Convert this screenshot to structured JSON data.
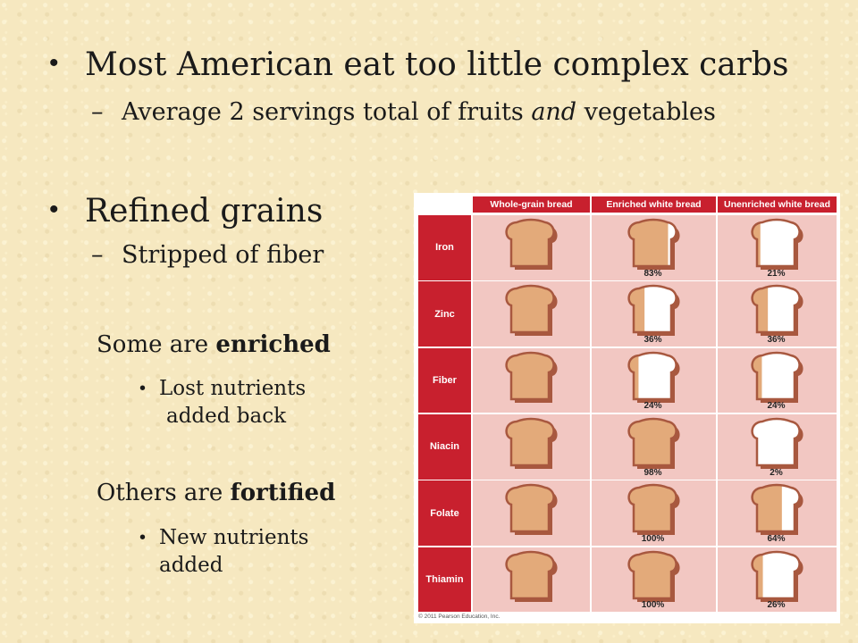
{
  "slide": {
    "bullet1": "Most American eat too little complex carbs",
    "bullet1_sub_prefix": "Average 2 servings total of fruits ",
    "bullet1_sub_italic": "and",
    "bullet1_sub_suffix": " vegetables",
    "dash": "–",
    "bullet2": "Refined grains",
    "bullet2_sub": "Stripped of fiber",
    "enriched_prefix": "Some are ",
    "enriched_bold": "enriched",
    "enriched_sub_line1": "Lost nutrients",
    "enriched_sub_line2": "added back",
    "fortified_prefix": "Others are ",
    "fortified_bold": "fortified",
    "fortified_sub_line1": "New nutrients",
    "fortified_sub_line2": "added"
  },
  "colors": {
    "header_red": "#c8202e",
    "cell_pink": "#f2c7c2",
    "bread_crust": "#a8583f",
    "bread_fill": "#e3aa7a",
    "bread_white": "#ffffff"
  },
  "chart_data": {
    "type": "table",
    "columns": [
      "Whole-grain bread",
      "Enriched white bread",
      "Unenriched white bread"
    ],
    "rows": [
      {
        "nutrient": "Iron",
        "enriched": "83%",
        "unenriched": "21%",
        "enriched_value": 83,
        "unenriched_value": 21
      },
      {
        "nutrient": "Zinc",
        "enriched": "36%",
        "unenriched": "36%",
        "enriched_value": 36,
        "unenriched_value": 36
      },
      {
        "nutrient": "Fiber",
        "enriched": "24%",
        "unenriched": "24%",
        "enriched_value": 24,
        "unenriched_value": 24
      },
      {
        "nutrient": "Niacin",
        "enriched": "98%",
        "unenriched": "2%",
        "enriched_value": 98,
        "unenriched_value": 2
      },
      {
        "nutrient": "Folate",
        "enriched": "100%",
        "unenriched": "64%",
        "enriched_value": 100,
        "unenriched_value": 64
      },
      {
        "nutrient": "Thiamin",
        "enriched": "100%",
        "unenriched": "26%",
        "enriched_value": 100,
        "unenriched_value": 26
      }
    ],
    "whole_grain_value": 100,
    "credit": "© 2011 Pearson Education, Inc."
  }
}
